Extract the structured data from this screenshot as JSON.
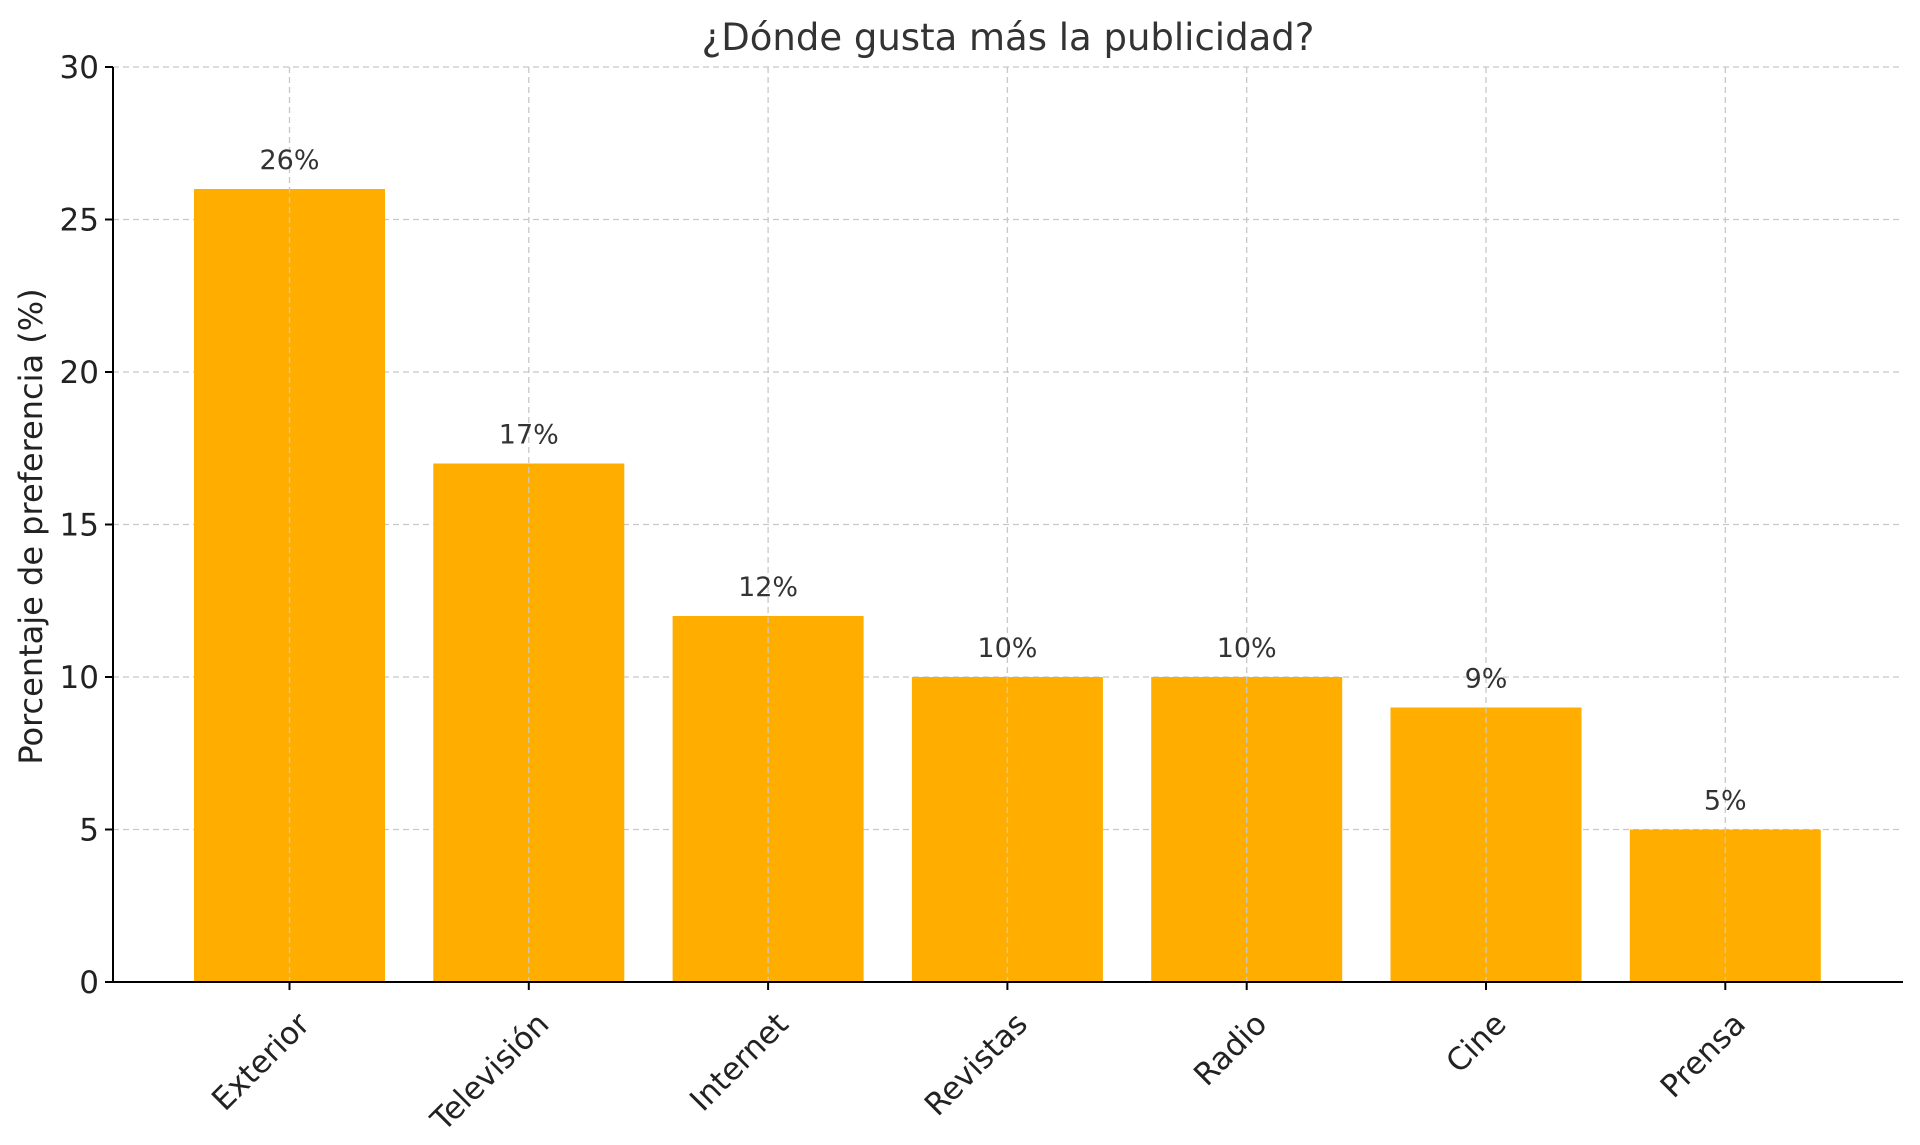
{
  "chart_data": {
    "type": "bar",
    "title": "¿Dónde gusta más la publicidad?",
    "xlabel": "",
    "ylabel": "Porcentaje de preferencia (%)",
    "categories": [
      "Exterior",
      "Televisión",
      "Internet",
      "Revistas",
      "Radio",
      "Cine",
      "Prensa"
    ],
    "values": [
      26,
      17,
      12,
      10,
      10,
      9,
      5
    ],
    "data_labels": [
      "26%",
      "17%",
      "12%",
      "10%",
      "10%",
      "9%",
      "5%"
    ],
    "ylim": [
      0,
      30
    ],
    "yticks": [
      0,
      5,
      10,
      15,
      20,
      25,
      30
    ],
    "bar_color": "#FFAE00",
    "grid": true,
    "grid_style": "dashed",
    "legend": "none"
  }
}
